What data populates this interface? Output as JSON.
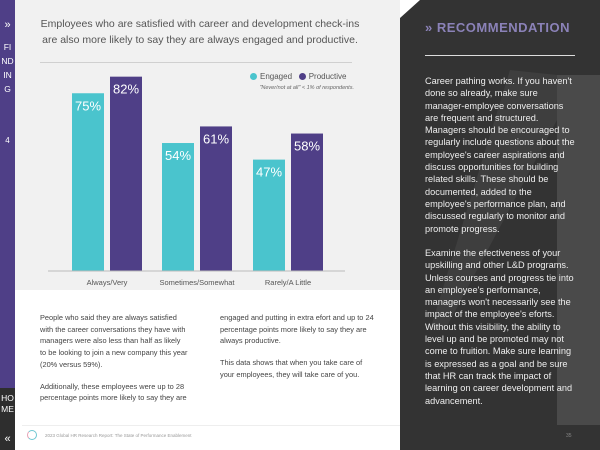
{
  "sidebar": {
    "section": "FINDING",
    "number": "4",
    "home": "HOME",
    "chevron_top": "»",
    "chevron_bottom": "«"
  },
  "chart_data": {
    "type": "bar",
    "title": "Employees who are satisfied with career and development check-ins are also more likely to say they are always engaged and productive.",
    "categories": [
      "Always/Very",
      "Sometimes/Somewhat",
      "Rarely/A Little"
    ],
    "series": [
      {
        "name": "Engaged",
        "color": "#4ac4cd",
        "values": [
          75,
          54,
          47
        ],
        "labels": [
          "75%",
          "54%",
          "47%"
        ]
      },
      {
        "name": "Productive",
        "color": "#4f3f87",
        "values": [
          82,
          61,
          58
        ],
        "labels": [
          "82%",
          "61%",
          "58%"
        ]
      }
    ],
    "note": "\"Never/not at all\" < 1% of respondents.",
    "legend": "top-right",
    "grid": false
  },
  "body": {
    "col1": [
      "People who said they are always satisfied with the career conversations they have with managers were also less than half as likely to be looking to join a new company this year (20% versus 59%).",
      "Additionally, these employees were up to 28 percentage points more likely to say they are"
    ],
    "col2": [
      "engaged and putting in extra efort and up to 24 percentage points more likely to say they are always productive.",
      "This data shows that when you take care of your employees, they will take care of you."
    ]
  },
  "recommendation": {
    "icon": "»",
    "heading": "RECOMMENDATION",
    "paragraphs": [
      "Career pathing works. If you haven't done so already, make sure manager-employee conversations are frequent and structured. Managers should be encouraged to regularly include questions about the employee's career aspirations and discuss opportunities for building related skills. These should be documented, added to the employee's performance plan, and discussed regularly to monitor and promote progress.",
      "Examine the efectiveness of your upskilling and other L&D programs. Unless courses and progress tie into an employee's performance, managers won't necessarily see the impact of the employee's eforts. Without this visibility, the ability to level up and be promoted may not come to fruition. Make sure learning is expressed as a goal and be sure that HR can track the impact of learning on career development and advancement."
    ]
  },
  "footer": {
    "text": "2023 Global HR Research Report: The State of Performance Enablement",
    "page": "35"
  }
}
